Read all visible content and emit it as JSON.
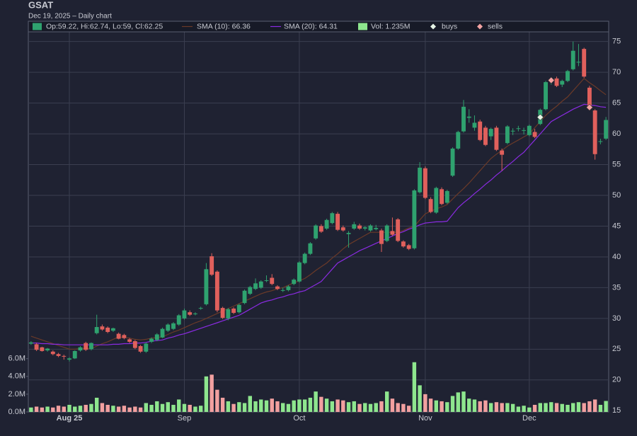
{
  "chart_data": {
    "type": "candlestick",
    "title": "GSAT",
    "subtitle": "Dec 19, 2025 – Daily chart",
    "categories": [
      null,
      null,
      null,
      null,
      null,
      null,
      null,
      "Aug 25",
      null,
      null,
      null,
      null,
      null,
      null,
      null,
      null,
      null,
      null,
      null,
      null,
      null,
      null,
      null,
      null,
      null,
      null,
      null,
      null,
      "Sep",
      null,
      null,
      null,
      null,
      null,
      null,
      null,
      null,
      null,
      null,
      null,
      null,
      null,
      null,
      null,
      null,
      null,
      null,
      null,
      null,
      "Oct",
      null,
      null,
      null,
      null,
      null,
      null,
      null,
      null,
      null,
      null,
      null,
      null,
      null,
      null,
      null,
      null,
      null,
      null,
      null,
      null,
      null,
      null,
      "Nov",
      null,
      null,
      null,
      null,
      null,
      null,
      null,
      null,
      null,
      null,
      null,
      null,
      null,
      null,
      null,
      null,
      null,
      null,
      "Dec",
      null,
      null,
      null,
      null,
      null,
      null,
      null,
      null,
      null,
      null,
      null,
      null,
      null,
      null
    ],
    "ylim": [
      14.8,
      78.3
    ],
    "yticks": [
      15,
      20,
      25,
      30,
      35,
      40,
      45,
      50,
      55,
      60,
      65,
      70,
      75
    ],
    "y2lim": [
      0,
      44
    ],
    "y2ticks": [
      {
        "value": 0,
        "label": "0.0M"
      },
      {
        "value": 2,
        "label": "2.0M"
      },
      {
        "value": 4,
        "label": "4.0M"
      },
      {
        "value": 6,
        "label": "6.0M"
      }
    ],
    "grid": true,
    "candles": {
      "name": "Op:59.22, Hi:62.74, Lo:59, Cl:62.25",
      "up_color": "#2fa26f",
      "down_color": "#e0605c",
      "open": [
        25.9,
        25.8,
        25.3,
        24.8,
        24.6,
        24.2,
        23.9,
        23.3,
        23.5,
        24.8,
        26.0,
        25.0,
        27.6,
        28.7,
        28.5,
        28.0,
        27.5,
        27.3,
        26.6,
        26.3,
        25.5,
        24.6,
        26.2,
        26.5,
        26.9,
        28.0,
        28.3,
        29.0,
        30.0,
        31.0,
        30.7,
        31.6,
        32.3,
        40.1,
        37.6,
        31.7,
        30.0,
        31.6,
        31.0,
        32.5,
        34.0,
        34.8,
        35.0,
        36.1,
        36.6,
        35.2,
        34.5,
        34.6,
        35.6,
        36.0,
        39.0,
        40.5,
        43.0,
        45.0,
        44.6,
        45.5,
        47.0,
        44.8,
        43.7,
        44.6,
        45.1,
        44.6,
        44.3,
        44.5,
        44.3,
        42.6,
        44.2,
        46.1,
        42.5,
        41.9,
        41.4,
        50.5,
        54.4,
        49.4,
        47.2,
        51.0,
        48.8,
        53.2,
        57.6,
        60.4,
        62.6,
        61.0,
        62.0,
        61.0,
        59.6,
        61.0,
        57.3,
        58.5,
        60.4,
        60.8,
        60.6,
        59.8,
        60.3,
        61.6,
        64.0,
        68.6,
        69.0,
        68.0,
        68.6,
        70.5,
        71.6,
        73.8,
        67.5,
        63.8,
        58.7,
        59.22
      ],
      "high": [
        26.3,
        26.0,
        25.4,
        25.2,
        24.8,
        24.4,
        24.1,
        23.7,
        24.8,
        25.5,
        26.2,
        26.1,
        30.6,
        29.0,
        28.7,
        28.5,
        27.7,
        27.5,
        26.8,
        26.5,
        25.7,
        26.1,
        26.9,
        27.6,
        28.5,
        29.2,
        29.4,
        30.7,
        31.6,
        31.3,
        31.0,
        31.9,
        39.0,
        40.6,
        37.8,
        31.9,
        31.7,
        31.8,
        32.4,
        34.7,
        35.3,
        36.5,
        36.2,
        37.0,
        37.2,
        35.4,
        35.0,
        35.4,
        36.5,
        39.3,
        40.7,
        42.4,
        45.3,
        45.3,
        46.2,
        47.3,
        47.3,
        45.1,
        44.2,
        45.7,
        45.4,
        45.0,
        45.3,
        45.2,
        44.6,
        45.3,
        46.4,
        46.3,
        42.7,
        42.1,
        51.0,
        55.4,
        54.7,
        49.7,
        51.4,
        51.3,
        50.9,
        57.8,
        60.5,
        65.5,
        64.0,
        63.0,
        62.3,
        61.3,
        61.0,
        61.3,
        57.6,
        61.4,
        60.9,
        61.3,
        61.0,
        61.5,
        60.8,
        64.1,
        68.6,
        69.2,
        69.3,
        68.8,
        70.4,
        75.0,
        74.6,
        74.0,
        67.8,
        64.0,
        59.2,
        62.74
      ],
      "low": [
        25.7,
        24.7,
        24.6,
        24.6,
        24.0,
        23.7,
        23.3,
        23.0,
        23.4,
        24.6,
        24.7,
        24.8,
        27.4,
        28.0,
        27.6,
        27.8,
        26.6,
        26.6,
        26.0,
        25.0,
        24.4,
        24.4,
        26.0,
        26.3,
        26.8,
        27.8,
        28.1,
        28.8,
        29.8,
        30.4,
        30.5,
        31.4,
        32.1,
        36.9,
        31.0,
        29.9,
        29.7,
        30.7,
        30.8,
        32.3,
        33.8,
        34.6,
        34.8,
        35.9,
        35.4,
        34.6,
        34.3,
        34.4,
        35.4,
        35.8,
        38.8,
        40.3,
        42.8,
        43.9,
        44.4,
        45.3,
        44.2,
        44.1,
        41.5,
        44.4,
        44.4,
        44.3,
        44.1,
        44.3,
        40.8,
        42.4,
        43.4,
        42.4,
        41.5,
        41.1,
        41.2,
        50.3,
        49.4,
        47.1,
        47.0,
        48.4,
        48.6,
        53.0,
        57.4,
        60.2,
        61.8,
        60.5,
        58.8,
        58.0,
        59.0,
        57.2,
        54.0,
        58.3,
        59.8,
        60.4,
        59.9,
        59.6,
        59.3,
        61.4,
        63.8,
        68.0,
        67.6,
        67.6,
        68.4,
        70.3,
        71.0,
        69.1,
        64.4,
        55.8,
        58.3,
        59
      ],
      "close": [
        26.1,
        24.9,
        24.7,
        25.1,
        24.2,
        23.9,
        23.8,
        23.5,
        24.7,
        25.3,
        24.9,
        26.0,
        28.6,
        28.2,
        27.8,
        28.4,
        26.7,
        26.8,
        26.2,
        25.2,
        24.6,
        25.9,
        26.7,
        27.4,
        28.3,
        29.0,
        29.2,
        30.5,
        31.3,
        30.6,
        30.8,
        31.7,
        38.0,
        37.1,
        31.3,
        30.1,
        31.5,
        30.9,
        32.2,
        34.5,
        35.1,
        35.7,
        36.0,
        36.2,
        35.6,
        34.8,
        34.6,
        35.2,
        36.3,
        39.1,
        40.5,
        42.2,
        45.1,
        44.1,
        46.0,
        47.1,
        44.4,
        44.3,
        43.9,
        45.3,
        44.6,
        44.8,
        45.1,
        44.7,
        42.1,
        45.1,
        43.6,
        42.6,
        41.7,
        41.3,
        50.8,
        54.5,
        49.6,
        47.3,
        51.2,
        48.6,
        50.7,
        57.6,
        60.3,
        64.4,
        62.8,
        61.8,
        59.0,
        58.2,
        60.8,
        57.4,
        56.6,
        61.2,
        60.5,
        60.9,
        60.6,
        61.3,
        59.5,
        63.9,
        68.4,
        68.7,
        67.8,
        68.6,
        70.2,
        73.5,
        71.7,
        69.3,
        64.6,
        56.7,
        58.8,
        62.25
      ]
    },
    "volume": {
      "name": "Vol: 1.235M",
      "axis": "y2",
      "up_color": "#8ee68e",
      "down_color": "#f2a0a0",
      "values": [
        0.5,
        0.6,
        0.5,
        0.6,
        0.5,
        0.7,
        0.6,
        0.8,
        0.6,
        0.7,
        0.8,
        0.9,
        1.6,
        1.0,
        0.8,
        0.7,
        0.6,
        0.7,
        0.5,
        0.6,
        0.5,
        1.0,
        0.8,
        1.2,
        0.9,
        1.1,
        0.8,
        1.4,
        0.9,
        0.8,
        0.6,
        0.7,
        4.0,
        4.2,
        2.5,
        1.6,
        1.2,
        0.9,
        1.1,
        1.0,
        1.8,
        1.2,
        1.4,
        1.3,
        1.5,
        1.2,
        1.0,
        0.9,
        1.3,
        1.4,
        1.4,
        1.6,
        2.3,
        1.7,
        1.5,
        1.2,
        1.4,
        1.3,
        1.1,
        1.2,
        0.9,
        1.0,
        0.9,
        1.0,
        1.2,
        2.3,
        1.5,
        1.0,
        0.9,
        0.7,
        5.6,
        3.0,
        2.0,
        1.5,
        1.3,
        1.2,
        1.1,
        1.8,
        2.2,
        2.3,
        1.5,
        1.4,
        1.2,
        1.3,
        1.0,
        1.1,
        1.0,
        1.0,
        0.9,
        0.6,
        0.7,
        0.5,
        0.8,
        1.0,
        1.0,
        1.1,
        1.0,
        0.9,
        0.8,
        1.0,
        1.1,
        1.0,
        1.2,
        1.4,
        0.8,
        1.235
      ]
    },
    "series": [
      {
        "name": "SMA (10): 66.36",
        "color": "#6b3a28",
        "values": [
          27.1,
          26.8,
          26.5,
          26.2,
          25.9,
          25.6,
          25.3,
          25.0,
          25.0,
          25.1,
          25.1,
          25.1,
          25.5,
          25.9,
          26.2,
          26.6,
          27.0,
          26.9,
          26.8,
          26.6,
          26.5,
          26.6,
          26.8,
          26.9,
          27.0,
          27.4,
          27.8,
          28.1,
          28.5,
          28.9,
          29.3,
          29.6,
          30.0,
          30.4,
          30.8,
          31.2,
          31.6,
          32.0,
          32.4,
          32.8,
          33.2,
          33.6,
          34.0,
          34.3,
          34.5,
          34.8,
          35.0,
          35.4,
          35.8,
          36.1,
          36.5,
          37.1,
          37.8,
          38.4,
          39.0,
          39.8,
          40.5,
          41.3,
          42.0,
          42.5,
          43.0,
          43.5,
          44.0,
          44.0,
          44.0,
          44.0,
          44.0,
          44.0,
          44.3,
          44.7,
          45.0,
          46.0,
          47.0,
          47.4,
          47.8,
          48.1,
          48.5,
          49.4,
          50.3,
          51.1,
          52.0,
          53.0,
          54.0,
          55.0,
          56.0,
          56.7,
          57.3,
          58.0,
          58.5,
          59.0,
          59.5,
          60.0,
          61.0,
          62.0,
          63.0,
          63.8,
          64.5,
          65.3,
          66.0,
          67.0,
          68.0,
          69.0,
          68.3,
          67.7,
          67.0,
          66.36
        ]
      },
      {
        "name": "SMA (20): 64.31",
        "color": "#8a2be2",
        "values": [
          26.0,
          26.0,
          25.9,
          25.9,
          25.8,
          25.8,
          25.7,
          25.7,
          25.7,
          25.7,
          25.7,
          25.7,
          25.7,
          25.7,
          25.7,
          25.8,
          25.8,
          25.9,
          25.9,
          26.0,
          26.0,
          26.1,
          26.3,
          26.4,
          26.5,
          26.8,
          27.0,
          27.3,
          27.5,
          27.8,
          28.1,
          28.4,
          28.7,
          29.0,
          29.3,
          29.6,
          29.9,
          30.2,
          30.5,
          31.0,
          31.5,
          32.0,
          32.5,
          32.8,
          33.0,
          33.3,
          33.5,
          33.8,
          34.0,
          34.3,
          34.5,
          35.0,
          35.5,
          36.0,
          37.0,
          38.0,
          39.0,
          39.5,
          40.0,
          40.5,
          41.0,
          41.4,
          41.8,
          42.2,
          42.6,
          43.0,
          43.4,
          43.8,
          44.1,
          44.5,
          44.8,
          45.2,
          45.5,
          45.6,
          45.7,
          45.7,
          45.8,
          46.9,
          48.0,
          48.8,
          49.5,
          50.3,
          51.0,
          51.8,
          52.5,
          53.3,
          54.0,
          54.8,
          55.5,
          56.3,
          57.0,
          58.0,
          59.0,
          60.0,
          61.0,
          62.0,
          62.5,
          63.0,
          63.5,
          64.0,
          64.4,
          64.8,
          64.7,
          64.6,
          64.4,
          64.31
        ]
      }
    ],
    "buys": {
      "name": "buys",
      "color": "#e6f4e6",
      "values": [
        null,
        null,
        null,
        null,
        null,
        null,
        null,
        null,
        null,
        null,
        null,
        null,
        null,
        null,
        null,
        null,
        null,
        null,
        null,
        null,
        null,
        null,
        null,
        null,
        null,
        null,
        null,
        null,
        null,
        null,
        null,
        null,
        null,
        null,
        null,
        null,
        null,
        null,
        null,
        null,
        null,
        null,
        null,
        null,
        null,
        null,
        null,
        null,
        null,
        null,
        null,
        null,
        null,
        null,
        null,
        null,
        null,
        null,
        null,
        null,
        null,
        null,
        null,
        null,
        null,
        null,
        null,
        null,
        null,
        null,
        null,
        null,
        null,
        null,
        null,
        null,
        null,
        null,
        null,
        null,
        null,
        null,
        null,
        null,
        null,
        null,
        null,
        null,
        null,
        null,
        null,
        null,
        null,
        62.7,
        null,
        null,
        null,
        null,
        null,
        null,
        null,
        null,
        null,
        null,
        null,
        null
      ]
    },
    "sells": {
      "name": "sells",
      "color": "#f4a3a3",
      "values": [
        null,
        null,
        null,
        null,
        null,
        null,
        null,
        null,
        null,
        null,
        null,
        null,
        null,
        null,
        null,
        null,
        null,
        null,
        null,
        null,
        null,
        null,
        null,
        null,
        null,
        null,
        null,
        null,
        null,
        null,
        null,
        null,
        null,
        null,
        null,
        null,
        null,
        null,
        null,
        null,
        null,
        null,
        null,
        null,
        null,
        null,
        null,
        null,
        null,
        null,
        null,
        null,
        null,
        null,
        null,
        null,
        null,
        null,
        null,
        null,
        null,
        null,
        null,
        null,
        null,
        null,
        null,
        null,
        null,
        null,
        null,
        null,
        null,
        null,
        null,
        null,
        null,
        null,
        null,
        null,
        null,
        null,
        null,
        null,
        null,
        null,
        null,
        null,
        null,
        null,
        null,
        null,
        null,
        null,
        null,
        68.7,
        null,
        null,
        null,
        null,
        null,
        null,
        64.3,
        null,
        null,
        null
      ]
    }
  }
}
